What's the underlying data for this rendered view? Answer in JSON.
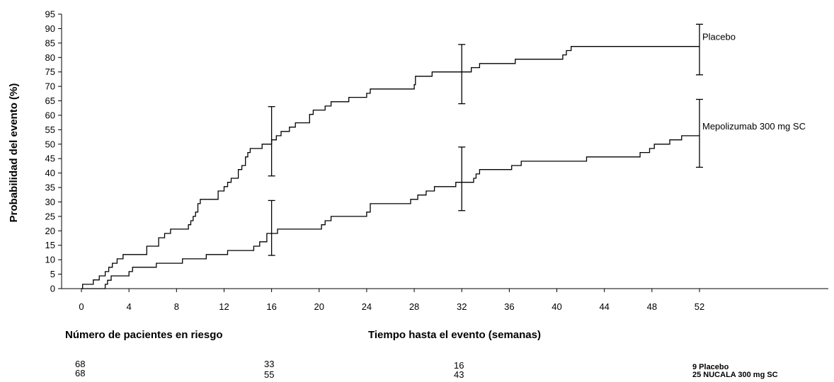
{
  "chart_data": {
    "type": "line",
    "ylabel": "Probabilidad del evento (%)",
    "xlabel": "Tiempo hasta el evento (semanas)",
    "xlim": [
      0,
      52
    ],
    "ylim": [
      0,
      95
    ],
    "xticks": [
      "0",
      "4",
      "8",
      "12",
      "16",
      "20",
      "24",
      "28",
      "32",
      "36",
      "40",
      "44",
      "48",
      "52"
    ],
    "yticks": [
      "0",
      "5",
      "10",
      "15",
      "20",
      "25",
      "30",
      "35",
      "40",
      "45",
      "50",
      "55",
      "60",
      "65",
      "70",
      "75",
      "80",
      "85",
      "90",
      "95"
    ],
    "grid": false,
    "series": [
      {
        "name": "Placebo",
        "color": "#000000",
        "step_points": [
          [
            0,
            0
          ],
          [
            0.1,
            1.5
          ],
          [
            1,
            3
          ],
          [
            1.5,
            4.4
          ],
          [
            2,
            5.9
          ],
          [
            2.3,
            7.4
          ],
          [
            2.6,
            8.8
          ],
          [
            3,
            10.3
          ],
          [
            3.5,
            11.8
          ],
          [
            5.5,
            14.7
          ],
          [
            6.5,
            17.6
          ],
          [
            7,
            19.1
          ],
          [
            7.5,
            20.6
          ],
          [
            9,
            22.1
          ],
          [
            9.2,
            23.5
          ],
          [
            9.4,
            25
          ],
          [
            9.6,
            26.5
          ],
          [
            9.8,
            29.4
          ],
          [
            10,
            30.9
          ],
          [
            11.5,
            33.8
          ],
          [
            12,
            35.3
          ],
          [
            12.3,
            36.8
          ],
          [
            12.6,
            38.2
          ],
          [
            13.2,
            41.2
          ],
          [
            13.5,
            42.6
          ],
          [
            13.8,
            45.6
          ],
          [
            14,
            47.1
          ],
          [
            14.2,
            48.5
          ],
          [
            15.2,
            50
          ],
          [
            16,
            51.5
          ],
          [
            16.4,
            52.9
          ],
          [
            16.8,
            54.4
          ],
          [
            17.5,
            55.9
          ],
          [
            18,
            57.4
          ],
          [
            19.2,
            60.3
          ],
          [
            19.5,
            61.8
          ],
          [
            20.5,
            63.2
          ],
          [
            21,
            64.7
          ],
          [
            22.5,
            66.2
          ],
          [
            24,
            67.6
          ],
          [
            24.3,
            69.1
          ],
          [
            28,
            70.6
          ],
          [
            28.1,
            73.5
          ],
          [
            29.5,
            75
          ],
          [
            32.8,
            76.5
          ],
          [
            33.5,
            77.9
          ],
          [
            36.5,
            79.4
          ],
          [
            40.5,
            80.9
          ],
          [
            40.8,
            82.4
          ],
          [
            41.2,
            83.8
          ],
          [
            52,
            83.8
          ]
        ],
        "ci_bars": [
          {
            "x": 16,
            "lower": 39,
            "upper": 63
          },
          {
            "x": 32,
            "lower": 64,
            "upper": 84.5
          },
          {
            "x": 52,
            "lower": 74,
            "upper": 91.5
          }
        ]
      },
      {
        "name": "Mepolizumab 300 mg SC",
        "color": "#000000",
        "step_points": [
          [
            0,
            0
          ],
          [
            1.8,
            0
          ],
          [
            2,
            1.5
          ],
          [
            2.2,
            2.9
          ],
          [
            2.5,
            4.4
          ],
          [
            4,
            5.9
          ],
          [
            4.3,
            7.4
          ],
          [
            6.3,
            7.4
          ],
          [
            6.3,
            8.8
          ],
          [
            8.5,
            8.8
          ],
          [
            8.5,
            10.3
          ],
          [
            10.5,
            10.3
          ],
          [
            10.5,
            11.8
          ],
          [
            12.3,
            11.8
          ],
          [
            12.3,
            13.2
          ],
          [
            14.5,
            13.2
          ],
          [
            14.5,
            14.7
          ],
          [
            15,
            16.2
          ],
          [
            15.6,
            19.1
          ],
          [
            16.5,
            20.6
          ],
          [
            20,
            20.6
          ],
          [
            20.2,
            22.1
          ],
          [
            20.5,
            23.5
          ],
          [
            21,
            25
          ],
          [
            23.7,
            25
          ],
          [
            24,
            26.5
          ],
          [
            24.3,
            29.4
          ],
          [
            27.5,
            29.4
          ],
          [
            27.7,
            30.9
          ],
          [
            28.3,
            32.4
          ],
          [
            29,
            33.8
          ],
          [
            29.7,
            35.3
          ],
          [
            31.5,
            36.8
          ],
          [
            33,
            38.2
          ],
          [
            33.2,
            39.7
          ],
          [
            33.5,
            41.2
          ],
          [
            36.2,
            42.6
          ],
          [
            37,
            44.1
          ],
          [
            42.5,
            44.1
          ],
          [
            42.5,
            45.6
          ],
          [
            47,
            47.1
          ],
          [
            47.8,
            48.5
          ],
          [
            48.2,
            50
          ],
          [
            49.5,
            51.5
          ],
          [
            50.5,
            52.9
          ],
          [
            52,
            52.9
          ]
        ],
        "ci_bars": [
          {
            "x": 16,
            "lower": 11.5,
            "upper": 30.5
          },
          {
            "x": 32,
            "lower": 27,
            "upper": 49
          },
          {
            "x": 52,
            "lower": 42,
            "upper": 65.5
          }
        ]
      }
    ]
  },
  "risk_table": {
    "title": "Número de pacientes en riesgo",
    "placebo_counts": [
      "68",
      "33",
      "16"
    ],
    "nucala_counts": [
      "68",
      "55",
      "43"
    ],
    "placebo_label": "9 Placebo",
    "nucala_label": "25 NUCALA 300 mg SC"
  }
}
